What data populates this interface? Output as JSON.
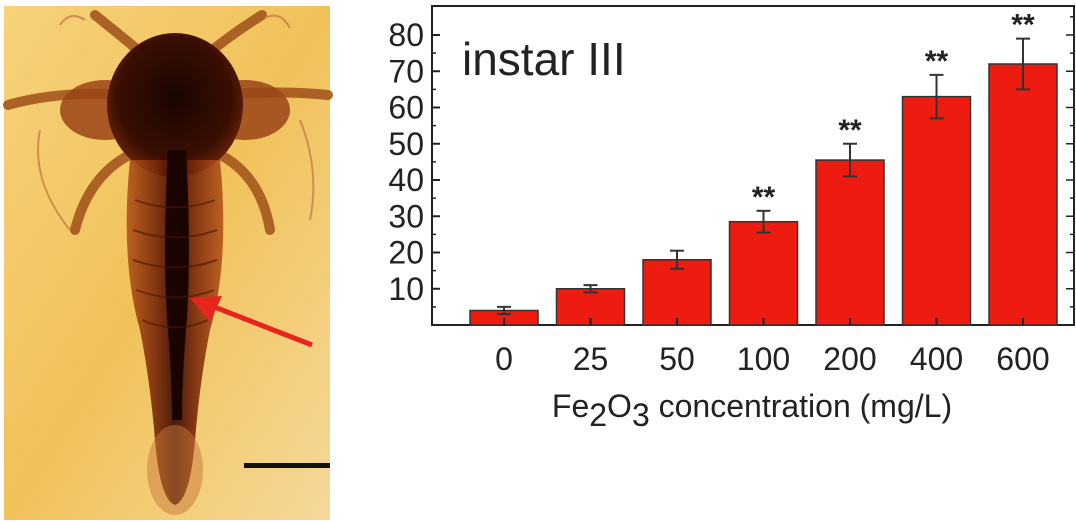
{
  "panel_label": "instar III",
  "chart_data": {
    "type": "bar",
    "title": "",
    "categories": [
      "0",
      "25",
      "50",
      "100",
      "200",
      "400",
      "600"
    ],
    "values": [
      4,
      10,
      18,
      28.5,
      45.5,
      63,
      72
    ],
    "errors": [
      1,
      1,
      2.5,
      3,
      4.5,
      6,
      7
    ],
    "significance": [
      "",
      "",
      "",
      "**",
      "**",
      "**",
      "**"
    ],
    "xlabel_main": "Fe",
    "xlabel_sub1": "2",
    "xlabel_mid": "O",
    "xlabel_sub2": "3",
    "xlabel_rest": " concentration (mg/L)",
    "ylabel": "",
    "ylim": [
      0,
      88
    ],
    "yticks": [
      10,
      20,
      30,
      40,
      50,
      60,
      70,
      80
    ],
    "grid": false,
    "bar_color": "#ee1c10"
  },
  "colors": {
    "photo_background": "#f2c25a",
    "specimen": "#5a1a06",
    "arrow": "#e8251d",
    "scale_bar": "#111111"
  }
}
